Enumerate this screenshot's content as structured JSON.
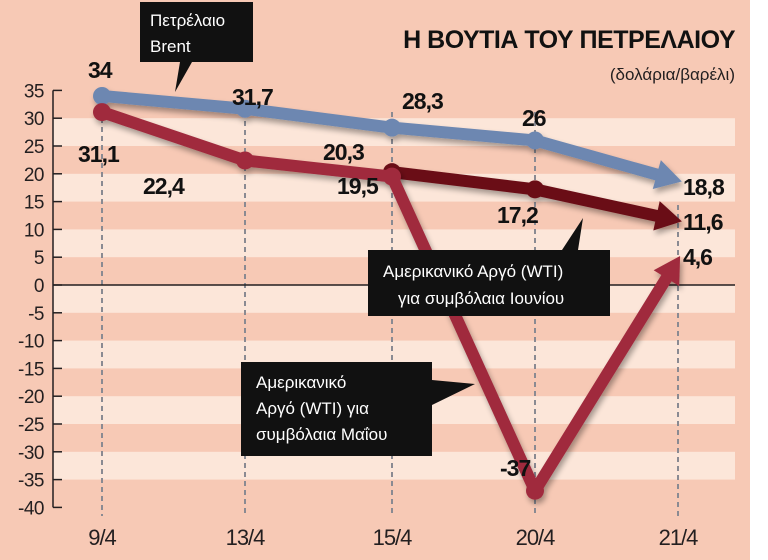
{
  "header": {
    "title": "Η ΒΟΥΤΙΑ ΤΟΥ ΠΕΤΡΕΛΑΙΟΥ",
    "subtitle": "(δολάρια/βαρέλι)"
  },
  "callouts": {
    "brent": [
      "Πετρέλαιο",
      "Brent"
    ],
    "wti_june": [
      "Αμερικανικό Αργό (WTI)",
      "για συμβόλαια Ιουνίου"
    ],
    "wti_may": [
      "Αμερικανικό",
      "Αργό (WTI) για",
      "συμβόλαια Μαΐου"
    ]
  },
  "colors": {
    "background": "#f7c9b5",
    "stripe_light": "#fce6d9",
    "brent": "#6d87b1",
    "wti_may": "#a02a3d",
    "wti_june": "#6b1019",
    "callout_bg": "#111111",
    "axis": "#231f20"
  },
  "chart_data": {
    "type": "line",
    "title": "Η ΒΟΥΤΙΑ ΤΟΥ ΠΕΤΡΕΛΑΙΟΥ",
    "subtitle": "(δολάρια/βαρέλι)",
    "xlabel": "",
    "ylabel": "δολάρια/βαρέλι",
    "categories": [
      "9/4",
      "13/4",
      "15/4",
      "20/4",
      "21/4"
    ],
    "yticks": [
      35,
      30,
      25,
      20,
      15,
      10,
      5,
      0,
      -5,
      -10,
      -15,
      -20,
      -25,
      -30,
      -35,
      -40
    ],
    "ylim": [
      -40,
      35
    ],
    "grid": "horizontal alternating bands, dashed vertical lines at each date",
    "series": [
      {
        "name": "Πετρέλαιο Brent",
        "values": [
          34,
          31.7,
          28.3,
          26,
          18.8
        ],
        "labels": [
          "34",
          "31,7",
          "28,3",
          "26",
          "18,8"
        ]
      },
      {
        "name": "Αμερικανικό Αργό (WTI) για συμβόλαια Μαΐου",
        "values": [
          31.1,
          22.4,
          19.5,
          -37,
          4.6
        ],
        "labels": [
          "31,1",
          "22,4",
          "19,5",
          "-37",
          "4,6"
        ]
      },
      {
        "name": "Αμερικανικό Αργό (WTI) για συμβόλαια Ιουνίου",
        "values": [
          null,
          null,
          20.3,
          17.2,
          11.6
        ],
        "labels": [
          "",
          "",
          "20,3",
          "17,2",
          "11,6"
        ]
      }
    ]
  }
}
